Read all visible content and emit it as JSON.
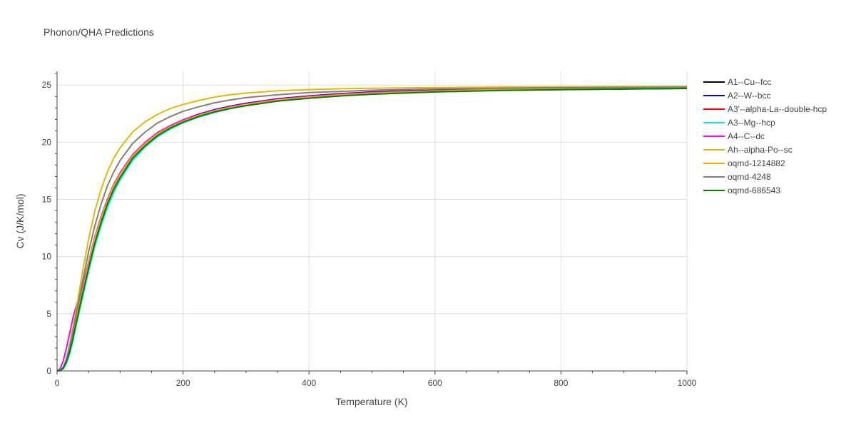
{
  "chart_data": {
    "type": "line",
    "title": "Phonon/QHA Predictions",
    "xlabel": "Temperature (K)",
    "ylabel": "Cv (J/K/mol)",
    "xlim": [
      0,
      1000
    ],
    "ylim": [
      0,
      26.2
    ],
    "grid": true,
    "legend_position": "right",
    "xticks": [
      0,
      200,
      400,
      600,
      800,
      1000
    ],
    "xtick_labels": [
      "0",
      "200",
      "400",
      "600",
      "800",
      "1000"
    ],
    "yticks": [
      0,
      5,
      10,
      15,
      20,
      25
    ],
    "ytick_labels": [
      "0",
      "5",
      "10",
      "15",
      "20",
      "25"
    ],
    "x": [
      0,
      5,
      10,
      15,
      20,
      25,
      30,
      40,
      50,
      60,
      70,
      80,
      90,
      100,
      120,
      140,
      160,
      180,
      200,
      225,
      250,
      275,
      300,
      350,
      400,
      450,
      500,
      600,
      700,
      800,
      900,
      1000
    ],
    "series": [
      {
        "name": "A1--Cu--fcc",
        "color": "#000000",
        "values": [
          0,
          0.05,
          0.3,
          0.9,
          1.8,
          3.0,
          4.3,
          6.9,
          9.4,
          11.6,
          13.4,
          14.9,
          16.2,
          17.2,
          18.8,
          19.9,
          20.8,
          21.4,
          21.9,
          22.35,
          22.75,
          23.05,
          23.3,
          23.65,
          23.9,
          24.1,
          24.25,
          24.45,
          24.55,
          24.6,
          24.65,
          24.7
        ]
      },
      {
        "name": "A2--W--bcc",
        "color": "#0000ff",
        "values": [
          0,
          0.05,
          0.3,
          0.9,
          1.9,
          3.1,
          4.4,
          7.0,
          9.5,
          11.7,
          13.5,
          15.0,
          16.3,
          17.3,
          18.9,
          20.0,
          20.85,
          21.45,
          21.95,
          22.45,
          22.85,
          23.15,
          23.4,
          23.8,
          24.05,
          24.25,
          24.4,
          24.55,
          24.65,
          24.72,
          24.76,
          24.8
        ]
      },
      {
        "name": "A3'--alpha-La--double-hcp",
        "color": "#ff0000",
        "values": [
          0,
          0.05,
          0.3,
          0.9,
          1.85,
          3.05,
          4.35,
          6.9,
          9.4,
          11.6,
          13.4,
          14.9,
          16.2,
          17.2,
          18.8,
          19.9,
          20.75,
          21.4,
          21.9,
          22.4,
          22.8,
          23.1,
          23.35,
          23.75,
          24.0,
          24.2,
          24.35,
          24.5,
          24.62,
          24.7,
          24.75,
          24.78
        ]
      },
      {
        "name": "A3--Mg--hcp",
        "color": "#00e5ee",
        "values": [
          0,
          0.03,
          0.2,
          0.7,
          1.5,
          2.6,
          3.9,
          6.3,
          8.7,
          10.9,
          12.7,
          14.3,
          15.6,
          16.7,
          18.4,
          19.6,
          20.5,
          21.15,
          21.7,
          22.2,
          22.6,
          22.95,
          23.2,
          23.6,
          23.9,
          24.1,
          24.25,
          24.45,
          24.58,
          24.67,
          24.73,
          24.78
        ]
      },
      {
        "name": "A4--C--dc",
        "color": "#ff00ff",
        "values": [
          0,
          0.2,
          0.9,
          2.0,
          3.3,
          4.6,
          5.6,
          7.3,
          9.5,
          11.7,
          13.5,
          15.0,
          16.3,
          17.3,
          18.9,
          20.0,
          20.85,
          21.45,
          21.95,
          22.4,
          22.8,
          23.1,
          23.35,
          23.75,
          24.0,
          24.2,
          24.35,
          24.5,
          24.62,
          24.7,
          24.75,
          24.78
        ]
      },
      {
        "name": "Ah--alpha-Po--sc",
        "color": "#e6b800",
        "values": [
          0,
          0.05,
          0.35,
          1.1,
          2.3,
          3.8,
          5.3,
          8.5,
          11.5,
          14.0,
          15.9,
          17.4,
          18.6,
          19.5,
          20.9,
          21.8,
          22.45,
          22.95,
          23.3,
          23.65,
          23.95,
          24.15,
          24.3,
          24.5,
          24.6,
          24.68,
          24.72,
          24.78,
          24.82,
          24.84,
          24.86,
          24.87
        ]
      },
      {
        "name": "oqmd-1214882",
        "color": "#ffa500",
        "values": [
          0,
          0.05,
          0.3,
          0.9,
          1.85,
          3.05,
          4.35,
          6.9,
          9.4,
          11.6,
          13.4,
          14.9,
          16.2,
          17.2,
          18.8,
          19.9,
          20.75,
          21.35,
          21.85,
          22.35,
          22.75,
          23.05,
          23.3,
          23.7,
          23.95,
          24.15,
          24.3,
          24.48,
          24.6,
          24.68,
          24.74,
          24.78
        ]
      },
      {
        "name": "oqmd-4248",
        "color": "#808080",
        "values": [
          0,
          0.05,
          0.35,
          1.0,
          2.1,
          3.4,
          4.9,
          7.7,
          10.4,
          12.7,
          14.6,
          16.2,
          17.4,
          18.4,
          19.9,
          20.9,
          21.7,
          22.25,
          22.7,
          23.1,
          23.45,
          23.7,
          23.9,
          24.15,
          24.35,
          24.45,
          24.55,
          24.65,
          24.72,
          24.77,
          24.8,
          24.83
        ]
      },
      {
        "name": "oqmd-686543",
        "color": "#008000",
        "values": [
          0,
          0.03,
          0.25,
          0.8,
          1.7,
          2.8,
          4.1,
          6.6,
          9.0,
          11.2,
          13.0,
          14.6,
          15.9,
          16.9,
          18.6,
          19.7,
          20.6,
          21.25,
          21.75,
          22.25,
          22.65,
          22.95,
          23.2,
          23.6,
          23.85,
          24.05,
          24.2,
          24.4,
          24.52,
          24.6,
          24.66,
          24.7
        ]
      }
    ]
  }
}
